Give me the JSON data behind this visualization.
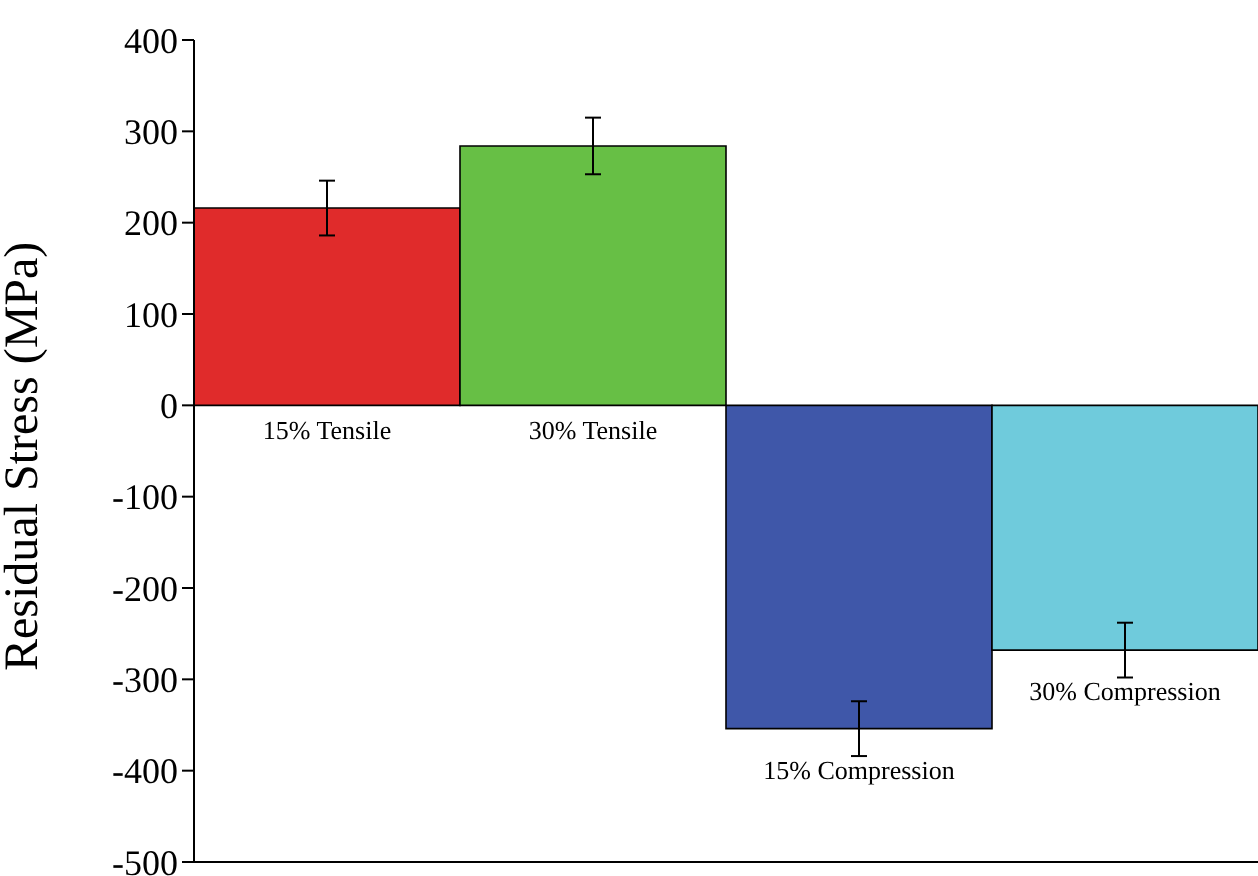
{
  "chart_data": {
    "type": "bar",
    "ylabel": "Residual Stress (MPa)",
    "categories": [
      "15% Tensile",
      "30% Tensile",
      "15% Compression",
      "30% Compression"
    ],
    "values": [
      216,
      284,
      -354,
      -268
    ],
    "colors": [
      "#e02b2b",
      "#67bf45",
      "#3f57a9",
      "#6fcbdc"
    ],
    "errors": [
      30,
      31,
      30,
      30
    ],
    "ylim": [
      -500,
      400
    ],
    "yticks": [
      -500,
      -400,
      -300,
      -200,
      -100,
      0,
      100,
      200,
      300,
      400
    ],
    "tick_labels": "y",
    "grid": false
  }
}
